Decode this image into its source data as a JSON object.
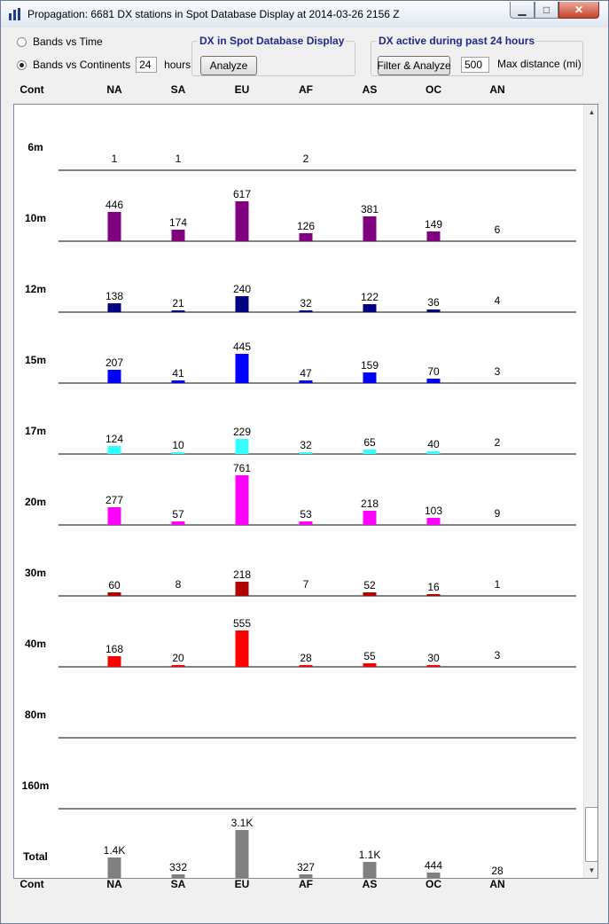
{
  "window": {
    "title": "Propagation: 6681 DX stations in Spot Database Display at 2014-03-26 2156 Z",
    "minimize_glyph": "▁",
    "maximize_glyph": "□",
    "close_glyph": "✕",
    "icon": "bar-chart-icon"
  },
  "options": {
    "bands_vs_time": "Bands vs Time",
    "bands_vs_continents": "Bands vs Continents",
    "selected": "Bands vs Continents",
    "hours_value": "24",
    "hours_label": "hours"
  },
  "spot_group": {
    "title": "DX in Spot Database Display",
    "analyze_label": "Analyze"
  },
  "active_group": {
    "title": "DX active during past 24 hours",
    "filter_label": "Filter & Analyze",
    "max_distance_value": "500",
    "max_distance_label": "Max distance (mi)"
  },
  "columns": {
    "cont_label": "Cont",
    "continents": [
      "NA",
      "SA",
      "EU",
      "AF",
      "AS",
      "OC",
      "AN"
    ]
  },
  "chart_data": {
    "type": "bar",
    "categories": [
      "NA",
      "SA",
      "EU",
      "AF",
      "AS",
      "OC",
      "AN"
    ],
    "series": [
      {
        "name": "6m",
        "color": "#800080",
        "values": [
          1,
          1,
          0,
          2,
          0,
          0,
          0
        ],
        "labels": [
          "1",
          "1",
          "",
          "2",
          "",
          "",
          ""
        ]
      },
      {
        "name": "10m",
        "color": "#800080",
        "values": [
          446,
          174,
          617,
          126,
          381,
          149,
          6
        ],
        "labels": [
          "446",
          "174",
          "617",
          "126",
          "381",
          "149",
          "6"
        ]
      },
      {
        "name": "12m",
        "color": "#000080",
        "values": [
          138,
          21,
          240,
          32,
          122,
          36,
          4
        ],
        "labels": [
          "138",
          "21",
          "240",
          "32",
          "122",
          "36",
          "4"
        ]
      },
      {
        "name": "15m",
        "color": "#0000ff",
        "values": [
          207,
          41,
          445,
          47,
          159,
          70,
          3
        ],
        "labels": [
          "207",
          "41",
          "445",
          "47",
          "159",
          "70",
          "3"
        ]
      },
      {
        "name": "17m",
        "color": "#33ffff",
        "values": [
          124,
          10,
          229,
          32,
          65,
          40,
          2
        ],
        "labels": [
          "124",
          "10",
          "229",
          "32",
          "65",
          "40",
          "2"
        ]
      },
      {
        "name": "20m",
        "color": "#ff00ff",
        "values": [
          277,
          57,
          761,
          53,
          218,
          103,
          9
        ],
        "labels": [
          "277",
          "57",
          "761",
          "53",
          "218",
          "103",
          "9"
        ]
      },
      {
        "name": "30m",
        "color": "#b00000",
        "values": [
          60,
          8,
          218,
          7,
          52,
          16,
          1
        ],
        "labels": [
          "60",
          "8",
          "218",
          "7",
          "52",
          "16",
          "1"
        ]
      },
      {
        "name": "40m",
        "color": "#ff0000",
        "values": [
          168,
          20,
          555,
          28,
          55,
          30,
          3
        ],
        "labels": [
          "168",
          "20",
          "555",
          "28",
          "55",
          "30",
          "3"
        ]
      },
      {
        "name": "80m",
        "color": "#ff0000",
        "values": [
          0,
          0,
          0,
          0,
          0,
          0,
          0
        ],
        "labels": [
          "",
          "",
          "",
          "",
          "",
          "",
          ""
        ]
      },
      {
        "name": "160m",
        "color": "#ff0000",
        "values": [
          0,
          0,
          0,
          0,
          0,
          0,
          0
        ],
        "labels": [
          "",
          "",
          "",
          "",
          "",
          "",
          ""
        ]
      },
      {
        "name": "Total",
        "color": "#808080",
        "values": [
          1400,
          332,
          3100,
          327,
          1100,
          444,
          28
        ],
        "labels": [
          "1.4K",
          "332",
          "3.1K",
          "327",
          "1.1K",
          "444",
          "28"
        ],
        "max": 3100
      }
    ],
    "band_max": 761,
    "grid": false
  },
  "scrollbar": {
    "up_glyph": "▲",
    "down_glyph": "▼"
  }
}
